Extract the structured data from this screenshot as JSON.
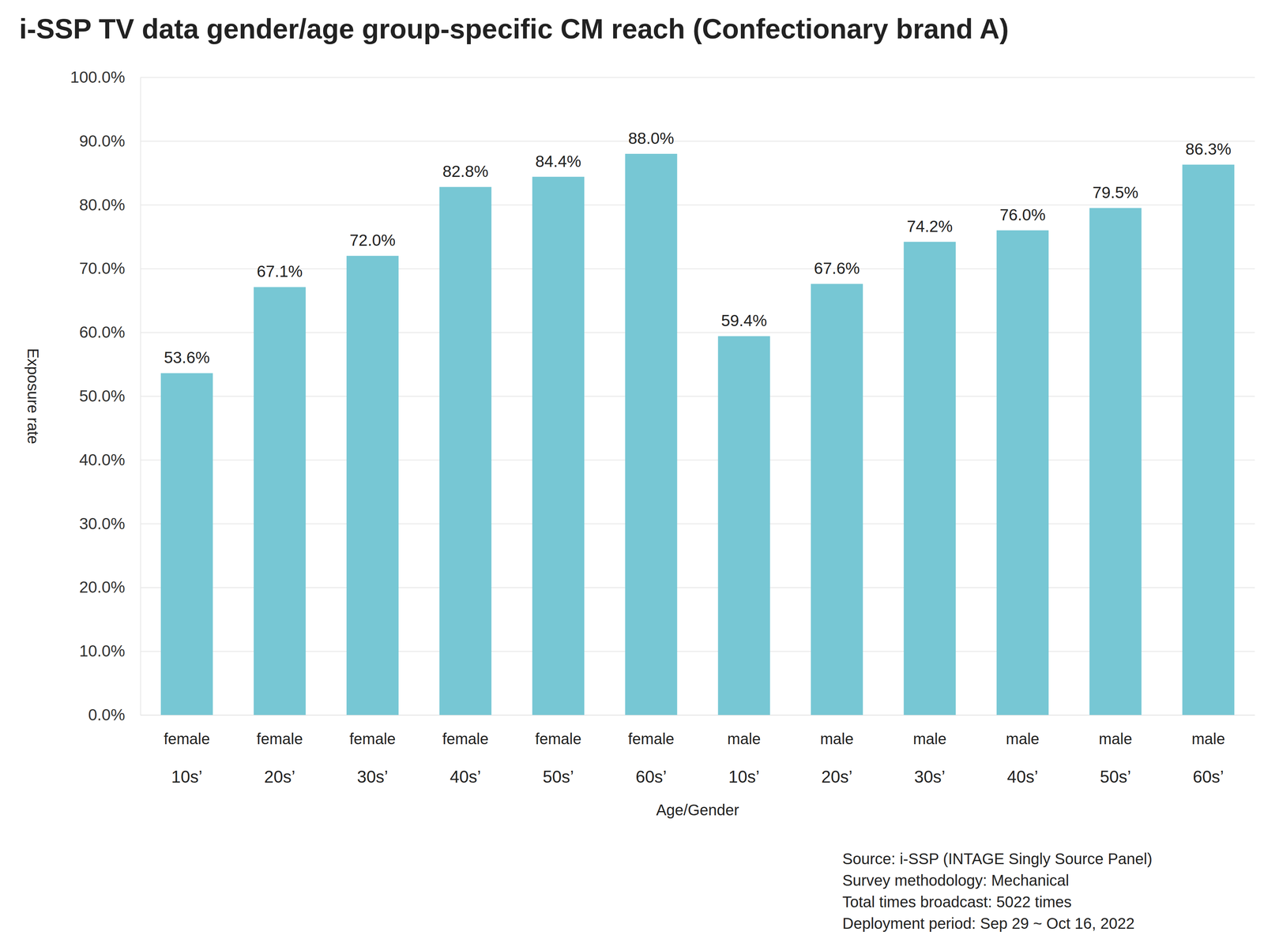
{
  "chart_data": {
    "type": "bar",
    "title": "i-SSP TV data gender/age group-specific CM reach (Confectionary brand A)",
    "x_label": "Age/Gender",
    "y_label": "Exposure rate",
    "categories": [
      "female\n10s’",
      "female\n20s’",
      "female\n30s’",
      "female\n40s’",
      "female\n50s’",
      "female\n60s’",
      "male\n10s’",
      "male\n20s’",
      "male\n30s’",
      "male\n40s’",
      "male\n50s’",
      "male\n60s’"
    ],
    "values": [
      53.6,
      67.1,
      72.0,
      82.8,
      84.4,
      88.0,
      59.4,
      67.6,
      74.2,
      76.0,
      79.5,
      86.3
    ],
    "value_labels": [
      "53.6%",
      "67.1%",
      "72.0%",
      "82.8%",
      "84.4%",
      "88.0%",
      "59.4%",
      "67.6%",
      "74.2%",
      "76.0%",
      "79.5%",
      "86.3%"
    ],
    "color": "#77c7d4",
    "ylim": [
      0,
      100
    ],
    "yticks": [
      {
        "value": 0,
        "label": "0.0%"
      },
      {
        "value": 10,
        "label": "10.0%"
      },
      {
        "value": 20,
        "label": "20.0%"
      },
      {
        "value": 30,
        "label": "30.0%"
      },
      {
        "value": 40,
        "label": "40.0%"
      },
      {
        "value": 50,
        "label": "50.0%"
      },
      {
        "value": 60,
        "label": "60.0%"
      },
      {
        "value": 70,
        "label": "70.0%"
      },
      {
        "value": 80,
        "label": "80.0%"
      },
      {
        "value": 90,
        "label": "90.0%"
      },
      {
        "value": 100,
        "label": "100.0%"
      }
    ],
    "grid": true,
    "data_labels": true,
    "annotations": [
      "Source: i-SSP (INTAGE Singly Source Panel)",
      "Survey methodology: Mechanical",
      "Total times broadcast: 5022 times",
      "Deployment period: Sep 29 ~ Oct 16, 2022"
    ]
  }
}
